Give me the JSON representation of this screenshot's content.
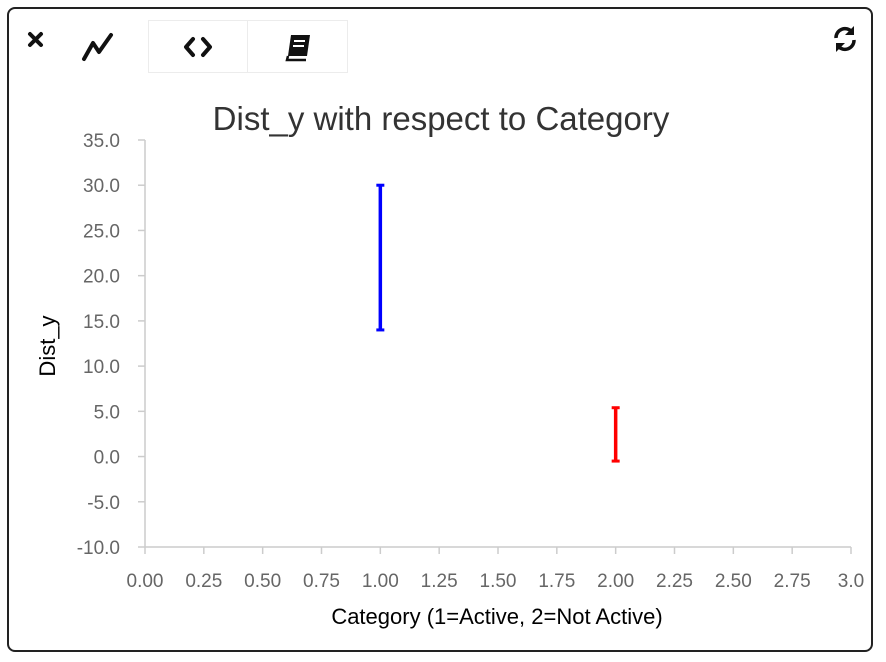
{
  "toolbar": {
    "close_icon": "close-icon",
    "refresh_icon": "refresh-icon",
    "tabs": [
      {
        "icon": "line-chart-icon",
        "active": true
      },
      {
        "icon": "code-icon",
        "active": false
      },
      {
        "icon": "book-icon",
        "active": false
      }
    ]
  },
  "chart_data": {
    "type": "errorbar",
    "title": "Dist_y with respect to Category",
    "xlabel": "Category (1=Active, 2=Not Active)",
    "ylabel": "Dist_y",
    "xlim": [
      0,
      3
    ],
    "ylim": [
      -10,
      35
    ],
    "xticks": [
      "0.00",
      "0.25",
      "0.50",
      "0.75",
      "1.00",
      "1.25",
      "1.50",
      "1.75",
      "2.00",
      "2.25",
      "2.50",
      "2.75",
      "3.0"
    ],
    "yticks": [
      "35.0",
      "30.0",
      "25.0",
      "20.0",
      "15.0",
      "10.0",
      "5.0",
      "0.0",
      "-5.0",
      "-10.0"
    ],
    "grid": false,
    "series": [
      {
        "x": 1,
        "low": 14,
        "high": 30,
        "color": "#0000ff"
      },
      {
        "x": 2,
        "low": -0.5,
        "high": 5.4,
        "color": "#ff0000"
      }
    ]
  }
}
